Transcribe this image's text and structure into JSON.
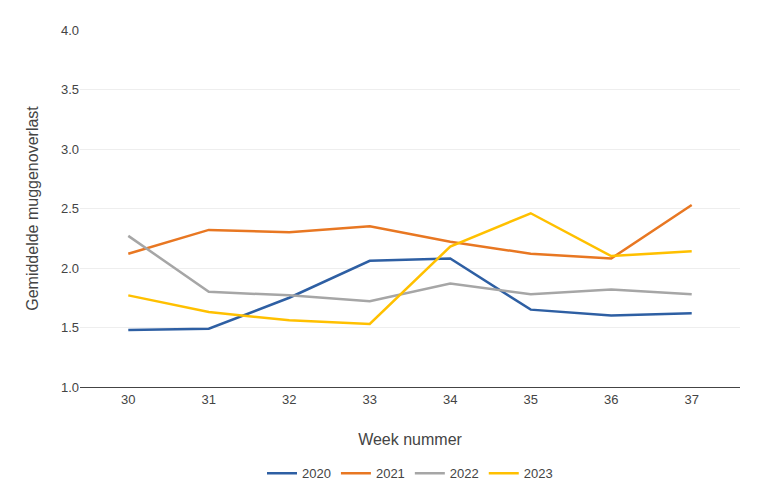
{
  "chart_data": {
    "type": "line",
    "x": [
      30,
      31,
      32,
      33,
      34,
      35,
      36,
      37
    ],
    "series": [
      {
        "name": "2020",
        "color": "#2E5FA3",
        "values": [
          1.48,
          1.49,
          1.75,
          2.06,
          2.08,
          1.65,
          1.6,
          1.62
        ]
      },
      {
        "name": "2021",
        "color": "#E87722",
        "values": [
          2.12,
          2.32,
          2.3,
          2.35,
          2.22,
          2.12,
          2.08,
          2.53
        ]
      },
      {
        "name": "2022",
        "color": "#A6A6A6",
        "values": [
          2.27,
          1.8,
          1.77,
          1.72,
          1.87,
          1.78,
          1.82,
          1.78
        ]
      },
      {
        "name": "2023",
        "color": "#FFC000",
        "values": [
          1.77,
          1.63,
          1.56,
          1.53,
          2.18,
          2.46,
          2.1,
          2.14
        ]
      }
    ],
    "xlabel": "Week nummer",
    "ylabel": "Gemiddelde muggenoverlast",
    "xlim": [
      29.4,
      37.6
    ],
    "xticks": [
      30,
      31,
      32,
      33,
      34,
      35,
      36,
      37
    ],
    "ylim": [
      1.0,
      4.0
    ],
    "yticks": [
      {
        "value": 1.0,
        "label": "1.0"
      },
      1.5,
      {
        "value": 2.0,
        "label": "2.0"
      },
      2.5,
      {
        "value": 3.0,
        "label": "3.0"
      },
      3.5,
      {
        "value": 4.0,
        "label": "4.0"
      }
    ],
    "grid": true,
    "legend": "bottom"
  }
}
